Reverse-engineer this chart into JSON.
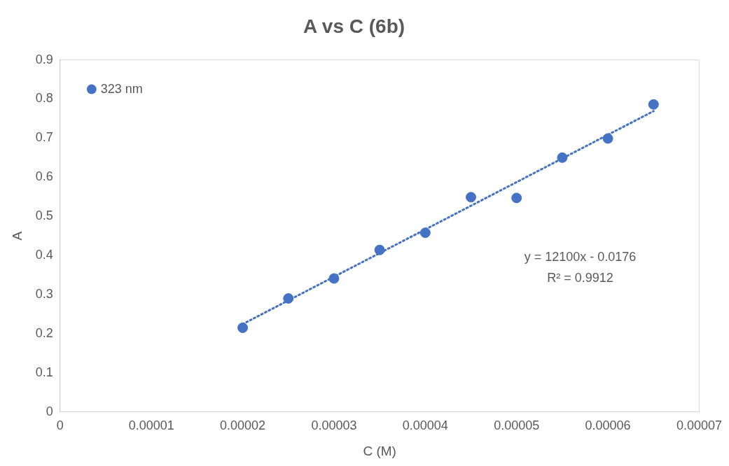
{
  "chart_data": {
    "type": "scatter",
    "title": "A vs C (6b)",
    "xlabel": "C (M)",
    "ylabel": "A",
    "xlim": [
      0,
      7e-05
    ],
    "xticks": [
      0,
      {
        "value": 1e-05,
        "label": "0.00001"
      },
      {
        "value": 2e-05,
        "label": "0.00002"
      },
      {
        "value": 3e-05,
        "label": "0.00003"
      },
      {
        "value": 4e-05,
        "label": "0.00004"
      },
      {
        "value": 5e-05,
        "label": "0.00005"
      },
      {
        "value": 6e-05,
        "label": "0.00006"
      },
      {
        "value": 7e-05,
        "label": "0.00007"
      }
    ],
    "ylim": [
      0,
      0.9
    ],
    "yticks": [
      0,
      0.1,
      0.2,
      0.3,
      0.4,
      0.5,
      0.6,
      0.7,
      0.8,
      0.9
    ],
    "grid": false,
    "legend": "top left",
    "marker": "circle",
    "series": [
      {
        "name": "323 nm",
        "color": "#4472c4",
        "x": [
          2e-05,
          2.5e-05,
          3e-05,
          3.5e-05,
          4e-05,
          4.5e-05,
          5e-05,
          5.5e-05,
          6e-05,
          6.5e-05
        ],
        "values": [
          0.215,
          0.29,
          0.341,
          0.414,
          0.458,
          0.549,
          0.547,
          0.65,
          0.699,
          0.786
        ]
      },
      {
        "type": "line",
        "line_style": "dotted",
        "marker": "none",
        "color": "#4472c4",
        "x": [
          2e-05,
          6.5e-05
        ],
        "values": [
          0.2244,
          0.769
        ]
      }
    ],
    "annotations": [
      "y = 12100x - 0.0176",
      "R² = 0.9912"
    ]
  }
}
